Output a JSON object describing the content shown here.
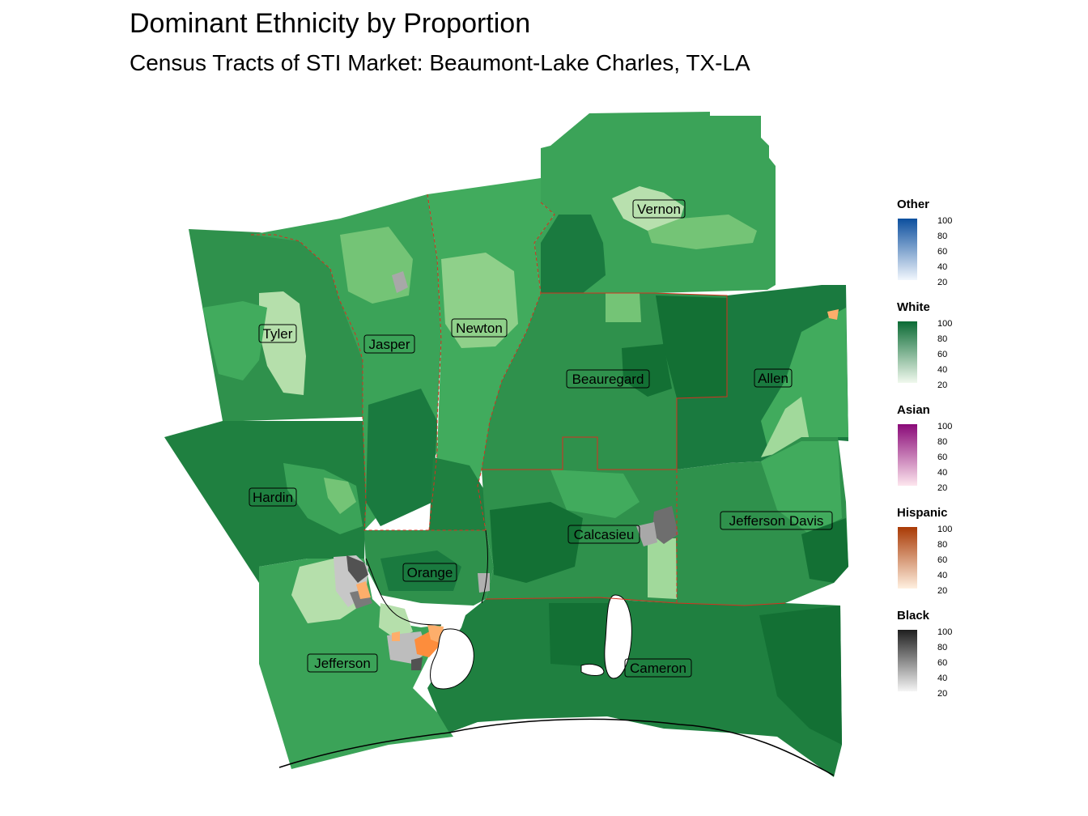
{
  "title": "Dominant Ethnicity by Proportion",
  "subtitle": "Census Tracts of STI Market: Beaumont-Lake Charles, TX-LA",
  "counties": [
    {
      "name": "Vernon"
    },
    {
      "name": "Tyler"
    },
    {
      "name": "Jasper"
    },
    {
      "name": "Newton"
    },
    {
      "name": "Beauregard"
    },
    {
      "name": "Allen"
    },
    {
      "name": "Hardin"
    },
    {
      "name": "Jefferson Davis"
    },
    {
      "name": "Calcasieu"
    },
    {
      "name": "Orange"
    },
    {
      "name": "Jefferson"
    },
    {
      "name": "Cameron"
    }
  ],
  "legend": [
    {
      "title": "Other",
      "ticks": [
        "100",
        "80",
        "60",
        "40",
        "20"
      ],
      "color_low": "#f2f7fd",
      "color_high": "#0c4f9e"
    },
    {
      "title": "White",
      "ticks": [
        "100",
        "80",
        "60",
        "40",
        "20"
      ],
      "color_low": "#f1f9ee",
      "color_high": "#0b6b35"
    },
    {
      "title": "Asian",
      "ticks": [
        "100",
        "80",
        "60",
        "40",
        "20"
      ],
      "color_low": "#fde6ee",
      "color_high": "#8a0a78"
    },
    {
      "title": "Hispanic",
      "ticks": [
        "100",
        "80",
        "60",
        "40",
        "20"
      ],
      "color_low": "#fff0e0",
      "color_high": "#a93a05"
    },
    {
      "title": "Black",
      "ticks": [
        "100",
        "80",
        "60",
        "40",
        "20"
      ],
      "color_low": "#f5f5f5",
      "color_high": "#1f1f1f"
    }
  ]
}
